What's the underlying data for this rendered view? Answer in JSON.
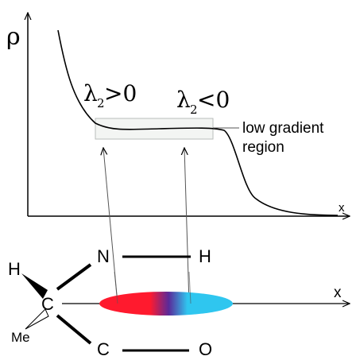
{
  "figure": {
    "rho_symbol": "ρ",
    "x_axis_top": "x",
    "x_axis_bottom": "x",
    "lambda_pos": {
      "base": "λ",
      "sub": "2",
      "rel": ">0"
    },
    "lambda_neg": {
      "base": "λ",
      "sub": "2",
      "rel": "<0"
    },
    "region_label_line1": "low gradient",
    "region_label_line2": "region",
    "atoms": {
      "n": "N",
      "h_right": "H",
      "h_left": "H",
      "c_center": "C",
      "c_bottom": "C",
      "o": "O",
      "me": "Me"
    },
    "colors": {
      "red": "#ff1a2e",
      "purple": "#5a2a9a",
      "cyan": "#2fc6ef",
      "box_stroke": "#b9bdbb",
      "box_fill": "#f3f5f3"
    }
  }
}
